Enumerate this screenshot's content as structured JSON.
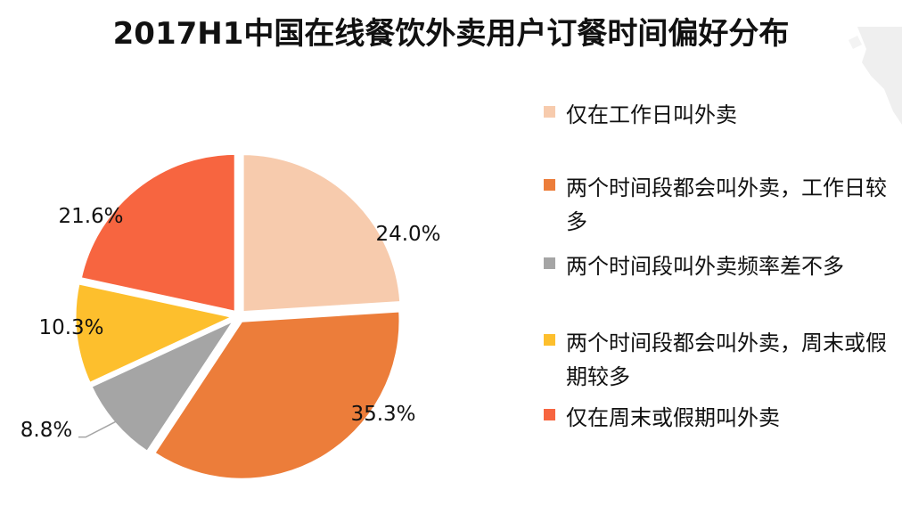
{
  "title": "2017H1中国在线餐饮外卖用户订餐时间偏好分布",
  "chart_data": {
    "type": "pie",
    "slices": [
      {
        "label": "仅在工作日叫外卖",
        "value": 24.0,
        "display": "24.0%",
        "color": "#F7CBAD"
      },
      {
        "label": "两个时间段都会叫外卖，工作日较多",
        "value": 35.3,
        "display": "35.3%",
        "color": "#EC7D3A"
      },
      {
        "label": "两个时间段叫外卖频率差不多",
        "value": 8.8,
        "display": "8.8%",
        "color": "#A5A5A5"
      },
      {
        "label": "两个时间段都会叫外卖，周末或假期较多",
        "value": 10.3,
        "display": "10.3%",
        "color": "#FDBF2D"
      },
      {
        "label": "仅在周末或假期叫外卖",
        "value": 21.6,
        "display": "21.6%",
        "color": "#F76540"
      }
    ]
  }
}
